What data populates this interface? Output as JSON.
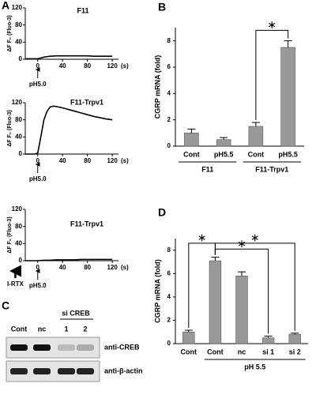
{
  "chart_data": [
    {
      "type": "line",
      "panel": "A",
      "title": "F11",
      "ylabel": "ΔF F₀ (Fluo-3)",
      "xunit": "(s)",
      "xlim": [
        -20,
        130
      ],
      "ylim": [
        0,
        120
      ],
      "xticks": [
        0,
        40,
        80,
        120
      ],
      "yticks": [
        0,
        40,
        80,
        120
      ],
      "x": [
        -20,
        -15,
        -10,
        -5,
        0,
        5,
        10,
        15,
        20,
        30,
        40,
        50,
        60,
        70,
        80,
        90,
        100,
        110,
        120
      ],
      "series": [
        {
          "name": "F11",
          "color": "#000000",
          "values": [
            1,
            1,
            1,
            1,
            1,
            3,
            5,
            6,
            7,
            8,
            8,
            8,
            8,
            8,
            8,
            7,
            7,
            7,
            7
          ]
        }
      ],
      "annotations": [
        {
          "text": "pH5.0",
          "x": 0
        }
      ]
    },
    {
      "type": "line",
      "title": "F11-Trpv1",
      "ylabel": "ΔF F₀ (Fluo-3)",
      "xunit": "(s)",
      "xlim": [
        -20,
        130
      ],
      "ylim": [
        0,
        120
      ],
      "xticks": [
        0,
        40,
        80,
        120
      ],
      "yticks": [
        0,
        40,
        80,
        120
      ],
      "x": [
        -20,
        -15,
        -10,
        -5,
        0,
        5,
        10,
        15,
        20,
        25,
        30,
        40,
        50,
        60,
        70,
        80,
        90,
        100,
        110,
        120
      ],
      "series": [
        {
          "name": "F11-Trpv1",
          "color": "#000000",
          "values": [
            0,
            0,
            0,
            0,
            2,
            40,
            80,
            100,
            110,
            112,
            111,
            108,
            104,
            100,
            96,
            92,
            88,
            85,
            82,
            80
          ]
        }
      ],
      "annotations": [
        {
          "text": "pH5.0",
          "x": 0
        }
      ]
    },
    {
      "type": "line",
      "title": "F11-Trpv1",
      "ylabel": "ΔF F₀ (Fluo-3)",
      "xunit": "(s)",
      "xlim": [
        -20,
        130
      ],
      "ylim": [
        0,
        120
      ],
      "xticks": [
        0,
        40,
        80,
        120
      ],
      "yticks": [
        0,
        40,
        80,
        120
      ],
      "x": [
        -20,
        -10,
        0,
        10,
        20,
        30,
        40,
        50,
        60,
        70,
        80,
        90,
        100,
        110,
        120
      ],
      "series": [
        {
          "name": "F11-Trpv1",
          "color": "#000000",
          "values": [
            0,
            0,
            0,
            1,
            1,
            2,
            2,
            2,
            2,
            3,
            3,
            3,
            3,
            3,
            3
          ]
        }
      ],
      "annotations": [
        {
          "text": "I-RTX",
          "x": -36
        },
        {
          "text": "pH5.0",
          "x": 0
        }
      ]
    },
    {
      "type": "bar",
      "panel": "B",
      "ylabel": "CGRP mRNA (fold)",
      "color": "#999999",
      "categories": [
        "Cont",
        "pH5.5",
        "Cont",
        "pH5.5"
      ],
      "values": [
        1.0,
        0.5,
        1.5,
        7.5
      ],
      "errors": [
        0.3,
        0.15,
        0.3,
        0.5
      ],
      "ylim": [
        0,
        9
      ],
      "yticks": [
        0,
        2,
        4,
        6,
        8
      ],
      "groups": [
        "F11",
        "F11-Trpv1"
      ],
      "significance": [
        "∗"
      ]
    },
    {
      "type": "bar",
      "panel": "D",
      "ylabel": "CGRP mRNA (fold)",
      "color": "#999999",
      "categories": [
        "Cont",
        "Cont",
        "nc",
        "si 1",
        "si 2"
      ],
      "values": [
        1.0,
        7.1,
        5.8,
        0.5,
        0.8
      ],
      "errors": [
        0.15,
        0.3,
        0.35,
        0.15,
        0.1
      ],
      "ylim": [
        0,
        9
      ],
      "yticks": [
        0,
        2,
        4,
        6,
        8
      ],
      "groups": [
        "pH 5.5"
      ],
      "significance": [
        "∗",
        "∗",
        "∗"
      ]
    }
  ],
  "blot": {
    "panel": "C",
    "header": "si CREB",
    "lanes": [
      "Cont",
      "nc",
      "1",
      "2"
    ],
    "rows": [
      "anti-CREB",
      "anti-β-actin"
    ]
  }
}
